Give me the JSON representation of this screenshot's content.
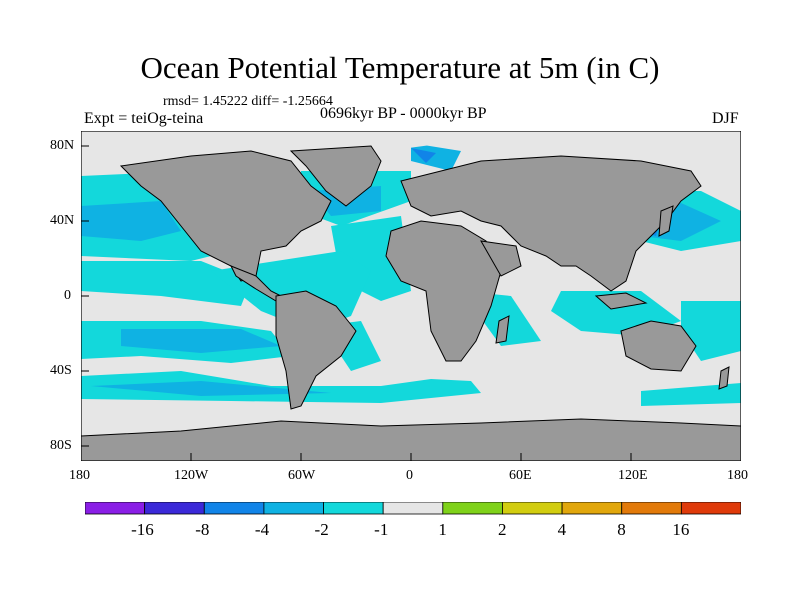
{
  "title": "Ocean Potential Temperature at 5m (in C)",
  "stats": "rmsd= 1.45222 diff= -1.25664",
  "experiment": "Expt = teiOg-teina",
  "period": "0696kyr BP - 0000kyr BP",
  "season": "DJF",
  "lat_labels": [
    "80N",
    "40N",
    "0",
    "40S",
    "80S"
  ],
  "lon_labels": [
    "180",
    "120W",
    "60W",
    "0",
    "60E",
    "120E",
    "180"
  ],
  "colors": {
    "land": "#999999",
    "neutral": "#e6e6e6",
    "light_cyan": "#13d8db",
    "sky_blue": "#0fb2e3",
    "ocean_blue": "#1184e8",
    "deep_blue": "#3b29d8",
    "purple": "#8a1ee6"
  },
  "colorbar": {
    "colors": [
      "#8a1ee6",
      "#3b29d8",
      "#1184e8",
      "#0fb2e3",
      "#13d8db",
      "#e6e6e6",
      "#7fd21a",
      "#d2cd10",
      "#e1a70c",
      "#e27a0a",
      "#df3a0a"
    ],
    "labels": [
      "-16",
      "-8",
      "-4",
      "-2",
      "-1",
      "1",
      "2",
      "4",
      "8",
      "16"
    ]
  }
}
